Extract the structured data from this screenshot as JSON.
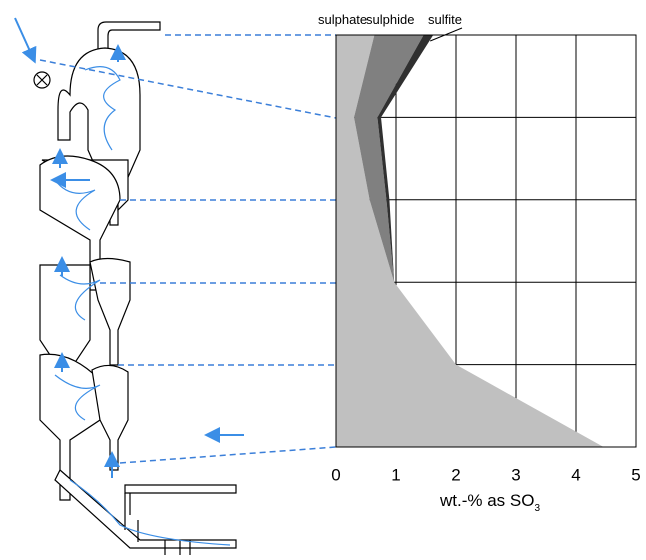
{
  "chart_data": {
    "type": "stacked-area-horizontal",
    "categories": [
      null,
      null,
      null,
      null,
      null,
      null
    ],
    "series": [
      {
        "name": "sulphate",
        "color": "#c0c0c0",
        "values": [
          0.64,
          0.3,
          0.56,
          0.97,
          2.0,
          4.46
        ]
      },
      {
        "name": "sulphide",
        "color": "#808080",
        "values": [
          0.82,
          0.39,
          0.28,
          0,
          0,
          0
        ]
      },
      {
        "name": "sulfite",
        "color": "#303030",
        "values": [
          0.16,
          0.06,
          0.05,
          0,
          0,
          0
        ]
      }
    ],
    "xlim": [
      0,
      5
    ],
    "xticks": [
      0,
      1,
      2,
      3,
      4,
      5
    ],
    "xlabel": "wt.-% as SO",
    "xlabel_subscript": "3",
    "grid": true
  }
}
